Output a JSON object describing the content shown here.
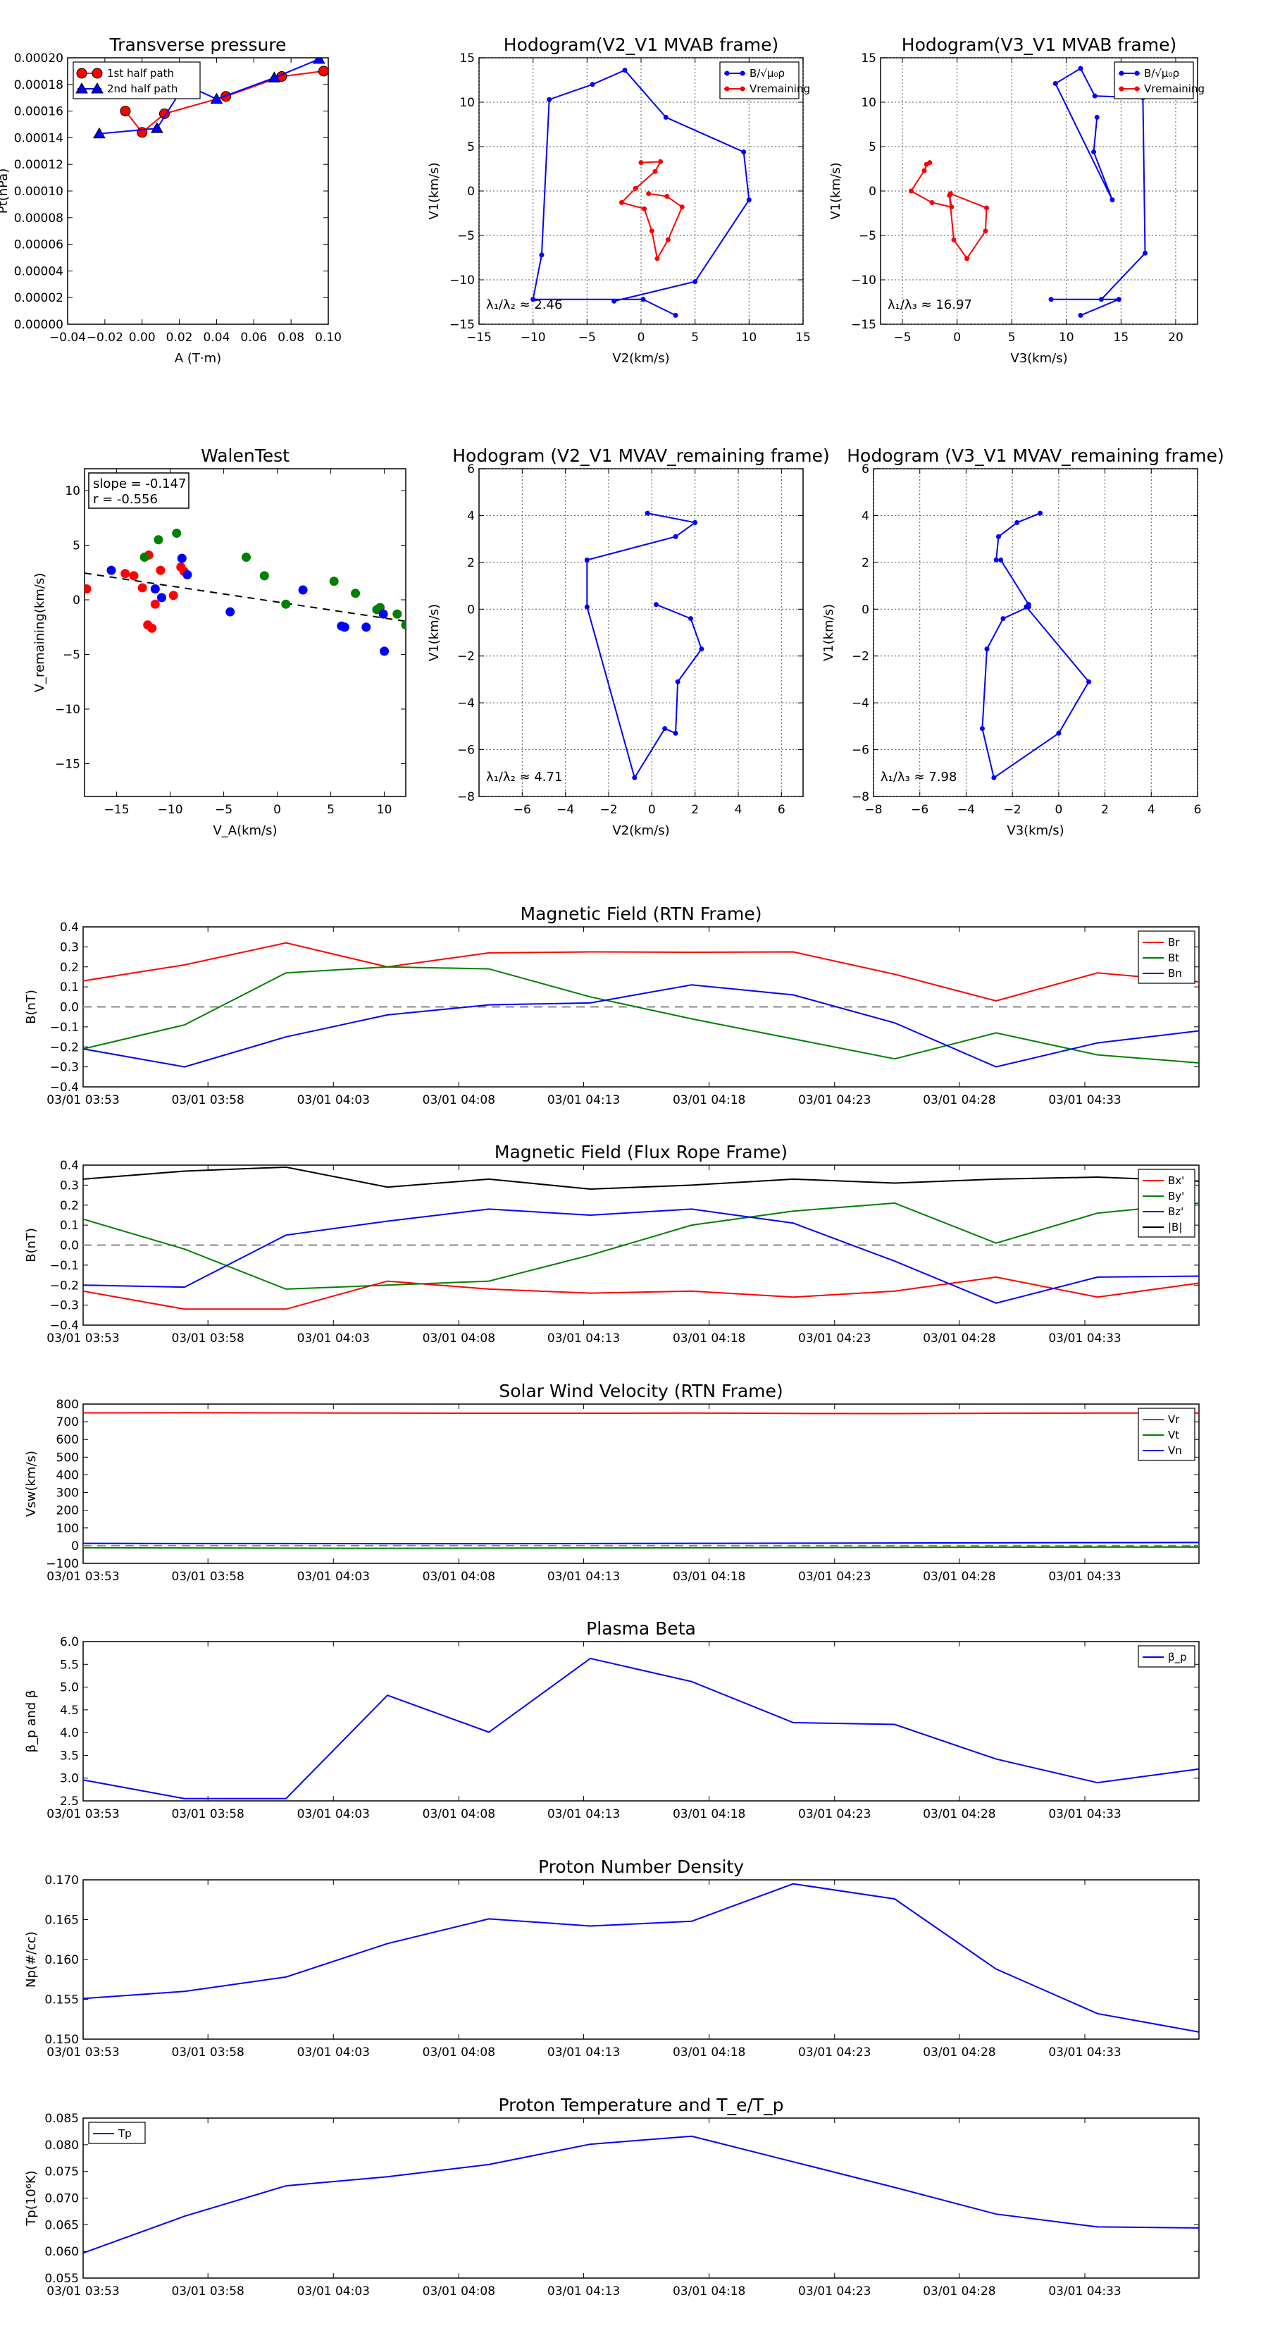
{
  "figure": {
    "background": "#ffffff",
    "colors": {
      "red": "#ff0000",
      "green": "#008000",
      "blue": "#0000ff",
      "black": "#000000",
      "grid": "#555555",
      "zero": "#888888"
    }
  },
  "time_axis": {
    "ticks": [
      "03/01 03:53",
      "03/01 03:58",
      "03/01 04:03",
      "03/01 04:08",
      "03/01 04:13",
      "03/01 04:18",
      "03/01 04:23",
      "03/01 04:28",
      "03/01 04:33"
    ],
    "x": [
      0,
      1,
      2,
      3,
      4,
      5,
      6,
      7,
      8,
      9,
      10,
      11,
      12,
      13
    ]
  },
  "chart_data": [
    {
      "id": "pt",
      "type": "scatter",
      "title": "Transverse pressure",
      "xlabel": "A (T·m)",
      "ylabel": "Pt(nPa)",
      "xlim": [
        -0.04,
        0.1
      ],
      "ylim": [
        0,
        0.0002
      ],
      "grid": false,
      "xticks": [
        "−0.04",
        "−0.02",
        "0.00",
        "0.02",
        "0.04",
        "0.06",
        "0.08",
        "0.10"
      ],
      "yticks": [
        "0.00000",
        "0.00002",
        "0.00004",
        "0.00006",
        "0.00008",
        "0.00010",
        "0.00012",
        "0.00014",
        "0.00016",
        "0.00018",
        "0.00020"
      ],
      "legend": {
        "position": "top-left",
        "entries": [
          "1st half path",
          "2nd half path"
        ]
      },
      "series": [
        {
          "name": "1st half path",
          "color": "red",
          "marker": "circle",
          "x": [
            -0.009,
            0.0,
            0.012,
            0.045,
            0.075,
            0.0975
          ],
          "y": [
            0.00016,
            0.000144,
            0.000158,
            0.000171,
            0.000186,
            0.00019
          ]
        },
        {
          "name": "2nd half path",
          "color": "blue",
          "marker": "triangle",
          "x": [
            -0.023,
            0.008,
            0.023,
            0.04,
            0.071,
            0.095
          ],
          "y": [
            0.000143,
            0.000147,
            0.00018,
            0.000169,
            0.000185,
            0.000199
          ]
        }
      ]
    },
    {
      "id": "h1",
      "type": "line",
      "title": "Hodogram(V2_V1 MVAB frame)",
      "xlabel": "V2(km/s)",
      "ylabel": "V1(km/s)",
      "xlim": [
        -15,
        15
      ],
      "ylim": [
        -15,
        15
      ],
      "grid": true,
      "xticks": [
        "−15",
        "−10",
        "−5",
        "0",
        "5",
        "10",
        "15"
      ],
      "yticks": [
        "−15",
        "−10",
        "−5",
        "0",
        "5",
        "10",
        "15"
      ],
      "annotation": "λ₁/λ₂ ≈ 2.46",
      "legend": {
        "position": "top-right",
        "entries": [
          "B/√μ₀ρ",
          "Vremaining"
        ]
      },
      "series": [
        {
          "name": "B/√μ₀ρ",
          "color": "blue",
          "x": [
            3.2,
            0.2,
            -10.0,
            -9.2,
            -8.5,
            -4.5,
            -1.5,
            2.3,
            9.5,
            10.0,
            5.0,
            -2.5
          ],
          "y": [
            -14.0,
            -12.2,
            -12.2,
            -7.2,
            10.3,
            12.0,
            13.6,
            8.3,
            4.4,
            -1.0,
            -10.2,
            -12.4
          ]
        },
        {
          "name": "Vremaining",
          "color": "red",
          "x": [
            0.0,
            1.8,
            1.3,
            -0.5,
            -1.8,
            0.3,
            1.0,
            1.5,
            2.5,
            3.8,
            2.4,
            0.7
          ],
          "y": [
            3.2,
            3.3,
            2.2,
            0.3,
            -1.3,
            -2.0,
            -4.5,
            -7.6,
            -5.5,
            -1.8,
            -0.6,
            -0.3
          ]
        }
      ]
    },
    {
      "id": "h2",
      "type": "line",
      "title": "Hodogram(V3_V1 MVAB frame)",
      "xlabel": "V3(km/s)",
      "ylabel": "V1(km/s)",
      "xlim": [
        -7,
        22
      ],
      "ylim": [
        -15,
        15
      ],
      "grid": true,
      "xticks": [
        "−5",
        "0",
        "5",
        "10",
        "15",
        "20"
      ],
      "yticks": [
        "−15",
        "−10",
        "−5",
        "0",
        "5",
        "10",
        "15"
      ],
      "annotation": "λ₁/λ₃ ≈ 16.97",
      "legend": {
        "position": "top-right",
        "entries": [
          "B/√μ₀ρ",
          "Vremaining"
        ]
      },
      "series": [
        {
          "name": "B/√μ₀ρ",
          "color": "blue",
          "x": [
            11.3,
            14.8,
            8.6,
            13.2,
            17.2,
            17.0,
            12.6,
            11.3,
            9.0,
            14.2,
            12.5,
            12.8
          ],
          "y": [
            -14.0,
            -12.2,
            -12.2,
            -12.2,
            -7.0,
            10.5,
            10.7,
            13.8,
            12.1,
            -1.0,
            4.4,
            8.3
          ]
        },
        {
          "name": "Vremaining",
          "color": "red",
          "x": [
            -2.5,
            -2.8,
            -3.0,
            -4.2,
            -2.3,
            -0.5,
            -0.7,
            -0.3,
            0.9,
            2.6,
            2.7,
            -0.6
          ],
          "y": [
            3.2,
            3.0,
            2.3,
            0.0,
            -1.3,
            -1.8,
            -0.5,
            -5.5,
            -7.6,
            -4.5,
            -1.9,
            -0.3
          ]
        }
      ]
    },
    {
      "id": "walen",
      "type": "scatter",
      "title": "WalenTest",
      "xlabel": "V_A(km/s)",
      "ylabel": "V_remaining(km/s)",
      "xlim": [
        -18,
        12
      ],
      "ylim": [
        -18,
        12
      ],
      "grid": false,
      "xticks": [
        "−15",
        "−10",
        "−5",
        "0",
        "5",
        "10"
      ],
      "yticks": [
        "−15",
        "−10",
        "−5",
        "0",
        "5",
        "10"
      ],
      "stats": [
        "slope = -0.147",
        "r = -0.556"
      ],
      "fit": {
        "slope": -0.147,
        "intercept": -0.2
      },
      "series": [
        {
          "name": "red",
          "color": "red",
          "x": [
            -17.8,
            -14.2,
            -13.4,
            -12.6,
            -12.1,
            -12.0,
            -11.7,
            -11.4,
            -10.9,
            -9.7,
            -9.0,
            -8.7
          ],
          "y": [
            1.0,
            2.4,
            2.2,
            1.1,
            -2.3,
            4.1,
            -2.6,
            -0.4,
            2.7,
            0.4,
            3.0,
            2.6
          ]
        },
        {
          "name": "green",
          "color": "green",
          "x": [
            -12.4,
            -11.1,
            -9.4,
            -2.9,
            -1.2,
            0.8,
            5.3,
            7.3,
            9.3,
            9.6,
            11.2,
            12.0
          ],
          "y": [
            3.9,
            5.5,
            6.1,
            3.9,
            2.2,
            -0.4,
            1.7,
            0.6,
            -0.9,
            -0.7,
            -1.3,
            -2.3
          ]
        },
        {
          "name": "blue",
          "color": "blue",
          "x": [
            -15.5,
            -11.4,
            -10.8,
            -8.9,
            -8.4,
            -4.4,
            2.4,
            6.0,
            6.3,
            8.3,
            9.9,
            10.0
          ],
          "y": [
            2.7,
            1.0,
            0.2,
            3.8,
            2.3,
            -1.1,
            0.9,
            -2.4,
            -2.5,
            -2.5,
            -1.3,
            -4.7
          ]
        }
      ]
    },
    {
      "id": "h3",
      "type": "line",
      "title": "Hodogram (V2_V1 MVAV_remaining frame)",
      "xlabel": "V2(km/s)",
      "ylabel": "V1(km/s)",
      "xlim": [
        -8,
        7
      ],
      "ylim": [
        -8,
        6
      ],
      "grid": true,
      "xticks": [
        "−6",
        "−4",
        "−2",
        "0",
        "2",
        "4",
        "6"
      ],
      "yticks": [
        "−8",
        "−6",
        "−4",
        "−2",
        "0",
        "2",
        "4",
        "6"
      ],
      "annotation": "λ₁/λ₂ ≈ 4.71",
      "series": [
        {
          "name": "V",
          "color": "blue",
          "x": [
            0.2,
            1.8,
            2.3,
            1.2,
            1.1,
            0.6,
            -0.8,
            -3.0,
            -3.0,
            1.1,
            2.0,
            -0.2
          ],
          "y": [
            0.2,
            -0.4,
            -1.7,
            -3.1,
            -5.3,
            -5.1,
            -7.2,
            0.1,
            2.1,
            3.1,
            3.7,
            4.1
          ]
        }
      ]
    },
    {
      "id": "h4",
      "type": "line",
      "title": "Hodogram (V3_V1 MVAV_remaining frame)",
      "xlabel": "V3(km/s)",
      "ylabel": "V1(km/s)",
      "xlim": [
        -8,
        6
      ],
      "ylim": [
        -8,
        6
      ],
      "grid": true,
      "xticks": [
        "−8",
        "−6",
        "−4",
        "−2",
        "0",
        "2",
        "4",
        "6"
      ],
      "yticks": [
        "−8",
        "−6",
        "−4",
        "−2",
        "0",
        "2",
        "4",
        "6"
      ],
      "annotation": "λ₁/λ₃ ≈ 7.98",
      "series": [
        {
          "name": "V",
          "color": "blue",
          "x": [
            -1.3,
            -1.4,
            1.3,
            0.0,
            -2.8,
            -3.3,
            -3.1,
            -2.4,
            -1.3,
            -1.3,
            -2.5,
            -2.7,
            -2.6,
            -1.8,
            -0.8
          ],
          "y": [
            0.2,
            0.1,
            -3.1,
            -5.3,
            -7.2,
            -5.1,
            -1.7,
            -0.4,
            0.1,
            0.2,
            2.1,
            2.1,
            3.1,
            3.7,
            4.1
          ]
        }
      ]
    },
    {
      "id": "brtn",
      "type": "line",
      "title": "Magnetic Field (RTN Frame)",
      "ylabel": "B(nT)",
      "ylim": [
        -0.4,
        0.4
      ],
      "yticks": [
        "−0.4",
        "−0.3",
        "−0.2",
        "−0.1",
        "0.0",
        "0.1",
        "0.2",
        "0.3",
        "0.4"
      ],
      "legend": {
        "position": "top-right",
        "entries": [
          "Br",
          "Bt",
          "Bn"
        ]
      },
      "series": [
        {
          "name": "Br",
          "color": "red",
          "y": [
            0.13,
            0.21,
            0.32,
            0.2,
            0.27,
            0.275,
            0.273,
            0.275,
            0.163,
            0.03,
            0.17,
            0.125
          ]
        },
        {
          "name": "Bt",
          "color": "green",
          "y": [
            -0.21,
            -0.09,
            0.17,
            0.2,
            0.19,
            0.05,
            -0.06,
            -0.16,
            -0.26,
            -0.13,
            -0.24,
            -0.28
          ]
        },
        {
          "name": "Bn",
          "color": "blue",
          "y": [
            -0.21,
            -0.3,
            -0.15,
            -0.04,
            0.01,
            0.02,
            0.11,
            0.06,
            -0.08,
            -0.3,
            -0.18,
            -0.12
          ]
        }
      ]
    },
    {
      "id": "bfr",
      "type": "line",
      "title": "Magnetic Field (Flux Rope Frame)",
      "ylabel": "B(nT)",
      "ylim": [
        -0.4,
        0.4
      ],
      "yticks": [
        "−0.4",
        "−0.3",
        "−0.2",
        "−0.1",
        "0.0",
        "0.1",
        "0.2",
        "0.3",
        "0.4"
      ],
      "legend": {
        "position": "top-right",
        "entries": [
          "Bx'",
          "By'",
          "Bz'",
          "|B|"
        ]
      },
      "series": [
        {
          "name": "Bx'",
          "color": "red",
          "y": [
            -0.23,
            -0.32,
            -0.32,
            -0.18,
            -0.22,
            -0.24,
            -0.23,
            -0.26,
            -0.23,
            -0.16,
            -0.26,
            -0.19
          ]
        },
        {
          "name": "By'",
          "color": "green",
          "y": [
            0.13,
            -0.02,
            -0.22,
            -0.2,
            -0.18,
            -0.05,
            0.1,
            0.17,
            0.21,
            0.01,
            0.16,
            0.21
          ]
        },
        {
          "name": "Bz'",
          "color": "blue",
          "y": [
            -0.2,
            -0.21,
            0.05,
            0.12,
            0.18,
            0.15,
            0.18,
            0.11,
            -0.08,
            -0.29,
            -0.16,
            -0.155
          ]
        },
        {
          "name": "|B|",
          "color": "black",
          "y": [
            0.33,
            0.37,
            0.39,
            0.29,
            0.33,
            0.28,
            0.3,
            0.33,
            0.31,
            0.33,
            0.34,
            0.32
          ]
        }
      ]
    },
    {
      "id": "vsw",
      "type": "line",
      "title": "Solar Wind Velocity (RTN Frame)",
      "ylabel": "Vsw(km/s)",
      "ylim": [
        -100,
        800
      ],
      "yticks": [
        "−100",
        "0",
        "100",
        "200",
        "300",
        "400",
        "500",
        "600",
        "700",
        "800"
      ],
      "legend": {
        "position": "top-right",
        "entries": [
          "Vr",
          "Vt",
          "Vn"
        ]
      },
      "series": [
        {
          "name": "Vr",
          "color": "red",
          "y": [
            750,
            751,
            750,
            749,
            748,
            748,
            749,
            747,
            746,
            748,
            749,
            749
          ]
        },
        {
          "name": "Vt",
          "color": "green",
          "y": [
            -12,
            -13,
            -14,
            -15,
            -14,
            -13,
            -12,
            -11,
            -10,
            -9,
            -8,
            -8
          ]
        },
        {
          "name": "Vn",
          "color": "blue",
          "y": [
            13,
            12,
            12,
            11,
            11,
            12,
            13,
            14,
            15,
            16,
            17,
            18
          ]
        }
      ]
    },
    {
      "id": "beta",
      "type": "line",
      "title": "Plasma Beta",
      "ylabel": "β_p and β",
      "ylim": [
        2.5,
        6.0
      ],
      "yticks": [
        "2.5",
        "3.0",
        "3.5",
        "4.0",
        "4.5",
        "5.0",
        "5.5",
        "6.0"
      ],
      "legend": {
        "position": "top-right",
        "entries": [
          "β_p"
        ]
      },
      "series": [
        {
          "name": "β_p",
          "color": "blue",
          "y": [
            2.96,
            2.55,
            2.55,
            4.82,
            4.01,
            5.63,
            5.12,
            4.22,
            4.18,
            3.42,
            2.9,
            3.2
          ]
        }
      ]
    },
    {
      "id": "np",
      "type": "line",
      "title": "Proton Number Density",
      "ylabel": "Np(#/cc)",
      "ylim": [
        0.15,
        0.17
      ],
      "yticks": [
        "0.150",
        "0.155",
        "0.160",
        "0.165",
        "0.170"
      ],
      "series": [
        {
          "name": "Np",
          "color": "blue",
          "y": [
            0.1551,
            0.156,
            0.1578,
            0.162,
            0.1651,
            0.1642,
            0.1648,
            0.1695,
            0.1676,
            0.1588,
            0.1532,
            0.1509
          ]
        }
      ]
    },
    {
      "id": "tp",
      "type": "line",
      "title": "Proton Temperature and T_e/T_p",
      "ylabel": "Tp(10⁶K)",
      "ylim": [
        0.055,
        0.085
      ],
      "yticks": [
        "0.055",
        "0.060",
        "0.065",
        "0.070",
        "0.075",
        "0.080",
        "0.085"
      ],
      "legend": {
        "position": "top-left",
        "entries": [
          "Tp"
        ]
      },
      "series": [
        {
          "name": "Tp",
          "color": "blue",
          "y": [
            0.0597,
            0.0666,
            0.0723,
            0.074,
            0.0763,
            0.0801,
            0.0816,
            0.0768,
            0.072,
            0.067,
            0.0646,
            0.0644
          ]
        }
      ]
    }
  ]
}
